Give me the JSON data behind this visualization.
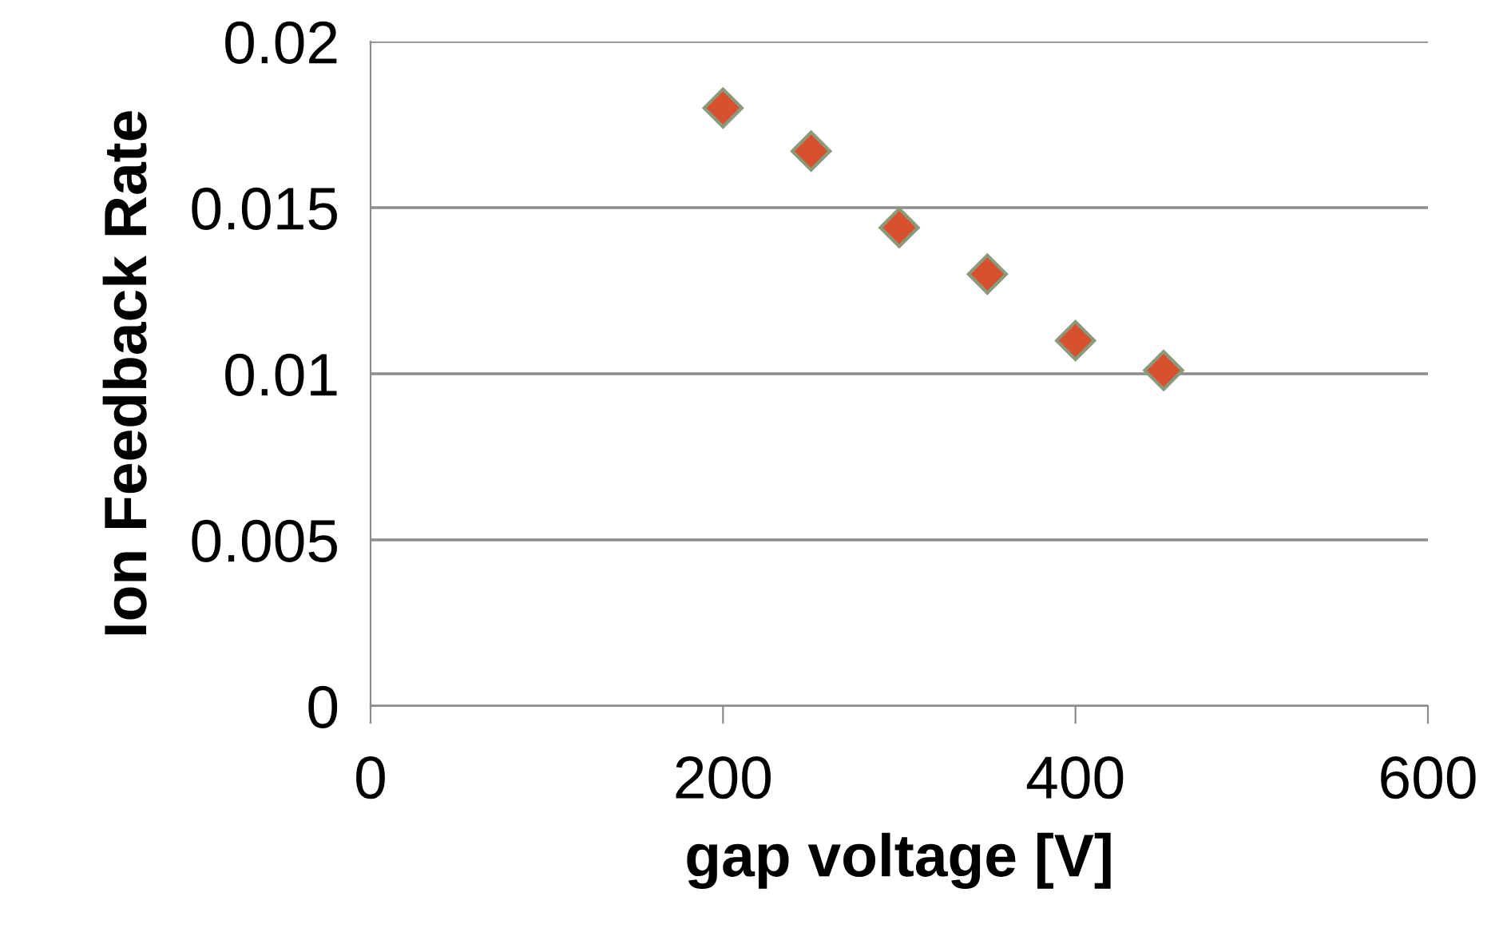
{
  "chart_data": {
    "type": "scatter",
    "xlabel": "gap voltage [V]",
    "ylabel": "Ion Feedback Rate",
    "x": [
      200,
      250,
      300,
      350,
      400,
      450
    ],
    "series": [
      {
        "color": "#d9502f",
        "values": [
          0.018,
          0.0167,
          0.0144,
          0.013,
          0.011,
          0.0101
        ]
      }
    ],
    "xlim": [
      0,
      600
    ],
    "xticks": [
      0,
      200,
      400,
      600
    ],
    "ylim": [
      0,
      0.02
    ],
    "yticks": [
      0,
      0.005,
      0.01,
      0.015,
      0.02
    ],
    "grid": "y",
    "marker": "diamond",
    "legend": false
  }
}
